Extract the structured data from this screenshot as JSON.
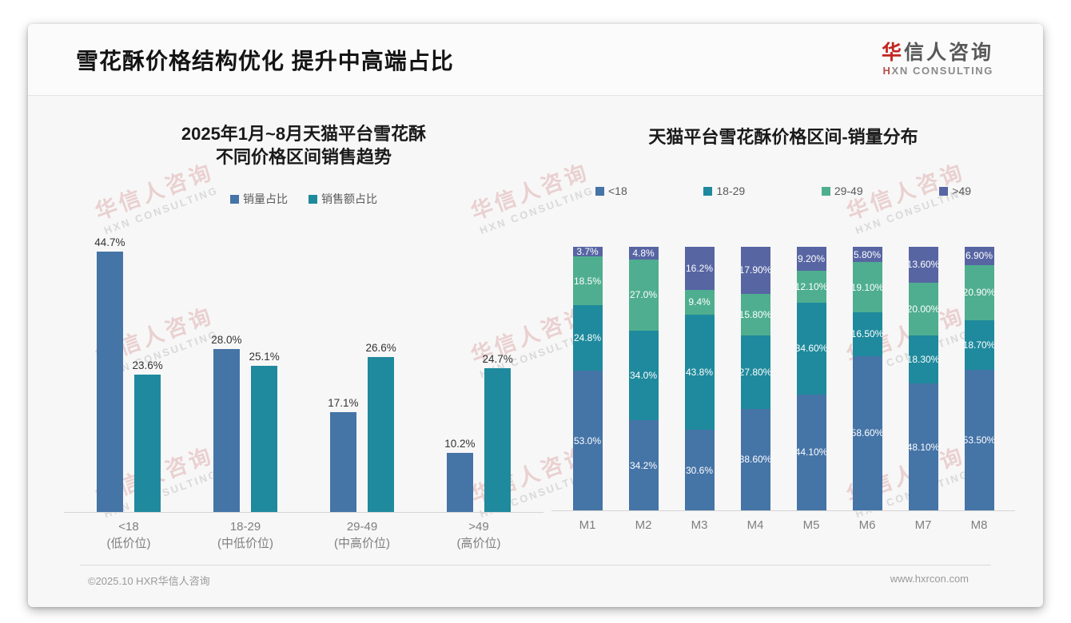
{
  "header": {
    "title": "雪花酥价格结构优化 提升中高端占比",
    "logo": {
      "cn_first": "华",
      "cn_rest": "信人咨询",
      "en_first": "H",
      "en_rest": "XN CONSULTING"
    }
  },
  "watermark": {
    "line1": "华信人咨询",
    "line2": "HXN CONSULTING"
  },
  "chart_data": [
    {
      "type": "bar",
      "title_lines": [
        "2025年1月~8月天猫平台雪花酥",
        "不同价格区间销售趋势"
      ],
      "categories": [
        {
          "range": "<18",
          "tier": "(低价位)"
        },
        {
          "range": "18-29",
          "tier": "(中低价位)"
        },
        {
          "range": "29-49",
          "tier": "(中高价位)"
        },
        {
          "range": ">49",
          "tier": "(高价位)"
        }
      ],
      "series": [
        {
          "name": "销量占比",
          "color": "#4574a7",
          "values": [
            44.7,
            28.0,
            17.1,
            10.2
          ],
          "labels": [
            "44.7%",
            "28.0%",
            "17.1%",
            "10.2%"
          ]
        },
        {
          "name": "销售额占比",
          "color": "#1f8a9d",
          "values": [
            23.6,
            25.1,
            26.6,
            24.7
          ],
          "labels": [
            "23.6%",
            "25.1%",
            "26.6%",
            "24.7%"
          ]
        }
      ],
      "ylabel": "",
      "xlabel": "",
      "ylim": [
        0,
        50
      ],
      "grid": false,
      "legend_position": "top"
    },
    {
      "type": "stacked-bar",
      "title": "天猫平台雪花酥价格区间-销量分布",
      "categories": [
        "M1",
        "M2",
        "M3",
        "M4",
        "M5",
        "M6",
        "M7",
        "M8"
      ],
      "series": [
        {
          "name": "<18",
          "color": "#4574a7",
          "values": [
            53.0,
            34.2,
            30.6,
            38.6,
            44.1,
            58.6,
            48.1,
            53.5
          ],
          "labels": [
            "53.0%",
            "34.2%",
            "30.6%",
            "38.60%",
            "44.10%",
            "58.60%",
            "48.10%",
            "53.50%"
          ]
        },
        {
          "name": "18-29",
          "color": "#1f8a9d",
          "values": [
            24.8,
            34.0,
            43.8,
            27.8,
            34.6,
            16.5,
            18.3,
            18.7
          ],
          "labels": [
            "24.8%",
            "34.0%",
            "43.8%",
            "27.80%",
            "34.60%",
            "16.50%",
            "18.30%",
            "18.70%"
          ]
        },
        {
          "name": "29-49",
          "color": "#4fae8f",
          "values": [
            18.5,
            27.0,
            9.4,
            15.8,
            12.1,
            19.1,
            20.0,
            20.9
          ],
          "labels": [
            "18.5%",
            "27.0%",
            "9.4%",
            "15.80%",
            "12.10%",
            "19.10%",
            "20.00%",
            "20.90%"
          ]
        },
        {
          "name": ">49",
          "color": "#5765a3",
          "values": [
            3.7,
            4.8,
            16.2,
            17.9,
            9.2,
            5.8,
            13.6,
            6.9
          ],
          "labels": [
            "3.7%",
            "4.8%",
            "16.2%",
            "17.90%",
            "9.20%",
            "5.80%",
            "13.60%",
            "6.90%"
          ]
        }
      ],
      "ylabel": "",
      "xlabel": "",
      "ylim": [
        0,
        100
      ],
      "grid": false,
      "legend_position": "top"
    }
  ],
  "footer": {
    "copyright": "©2025.10 HXR华信人咨询",
    "website": "www.hxrcon.com"
  },
  "colors": {
    "series_blue": "#4574a7",
    "series_teal": "#1f8a9d",
    "series_green": "#4fae8f",
    "series_darkblue": "#5765a3",
    "logo_red": "#c22521"
  }
}
